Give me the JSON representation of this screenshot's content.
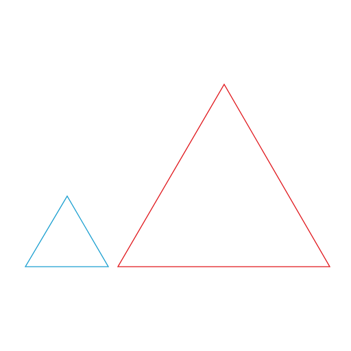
{
  "diagram": {
    "shapes": [
      {
        "kind": "triangle",
        "size": "small",
        "stroke": "#1a9fd0"
      },
      {
        "kind": "triangle",
        "size": "large",
        "stroke": "#e0161b"
      }
    ]
  }
}
